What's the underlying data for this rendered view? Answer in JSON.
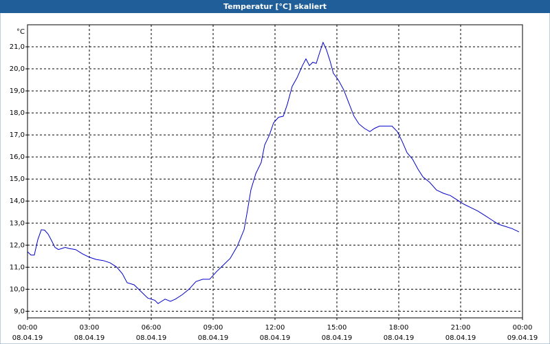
{
  "chart_data": {
    "type": "line",
    "title": "Temperatur [°C] skaliert",
    "y_label": "°C",
    "color": "#0000cc",
    "grid": true,
    "x": [
      0,
      0.17,
      0.33,
      0.5,
      0.67,
      0.83,
      1,
      1.17,
      1.33,
      1.5,
      1.67,
      1.83,
      2,
      2.33,
      2.67,
      3,
      3.33,
      3.67,
      4,
      4.33,
      4.6,
      4.83,
      5.17,
      5.5,
      5.83,
      6.17,
      6.33,
      6.5,
      6.67,
      6.93,
      7.17,
      7.5,
      7.83,
      8.17,
      8.5,
      8.83,
      9.17,
      9.5,
      9.83,
      10.17,
      10.5,
      10.67,
      10.83,
      11.07,
      11.33,
      11.5,
      11.73,
      11.93,
      12.17,
      12.4,
      12.6,
      12.83,
      13.07,
      13.33,
      13.5,
      13.67,
      13.83,
      14,
      14.17,
      14.33,
      14.5,
      14.67,
      14.83,
      15.07,
      15.33,
      15.6,
      15.83,
      16.07,
      16.33,
      16.6,
      16.83,
      17.07,
      17.33,
      17.67,
      17.93,
      18.17,
      18.4,
      18.67,
      18.93,
      19.17,
      19.5,
      19.83,
      20.17,
      20.5,
      20.83,
      21.17,
      21.5,
      21.83,
      22.17,
      22.5,
      22.83,
      23.17,
      23.5,
      23.83
    ],
    "values": [
      11.7,
      11.55,
      11.55,
      12.25,
      12.7,
      12.68,
      12.5,
      12.2,
      11.9,
      11.8,
      11.85,
      11.9,
      11.85,
      11.8,
      11.6,
      11.45,
      11.35,
      11.3,
      11.2,
      11.0,
      10.7,
      10.3,
      10.2,
      9.9,
      9.6,
      9.5,
      9.35,
      9.45,
      9.55,
      9.45,
      9.55,
      9.75,
      10.0,
      10.35,
      10.45,
      10.45,
      10.8,
      11.1,
      11.4,
      11.95,
      12.7,
      13.6,
      14.5,
      15.25,
      15.75,
      16.55,
      17.0,
      17.55,
      17.8,
      17.85,
      18.4,
      19.2,
      19.6,
      20.15,
      20.45,
      20.15,
      20.3,
      20.25,
      20.75,
      21.2,
      20.85,
      20.35,
      19.8,
      19.5,
      19.05,
      18.4,
      17.85,
      17.5,
      17.3,
      17.15,
      17.3,
      17.4,
      17.4,
      17.4,
      17.15,
      16.7,
      16.2,
      15.9,
      15.45,
      15.1,
      14.85,
      14.5,
      14.35,
      14.25,
      14.05,
      13.85,
      13.7,
      13.55,
      13.35,
      13.15,
      12.95,
      12.85,
      12.75,
      12.6
    ],
    "xlim": [
      0,
      24
    ],
    "ylim": [
      8.7,
      22
    ],
    "xticks": [
      {
        "value": 0,
        "label": "00:00",
        "date": "08.04.19"
      },
      {
        "value": 3,
        "label": "03:00",
        "date": "08.04.19"
      },
      {
        "value": 6,
        "label": "06:00",
        "date": "08.04.19"
      },
      {
        "value": 9,
        "label": "09:00",
        "date": "08.04.19"
      },
      {
        "value": 12,
        "label": "12:00",
        "date": "08.04.19"
      },
      {
        "value": 15,
        "label": "15:00",
        "date": "08.04.19"
      },
      {
        "value": 18,
        "label": "18:00",
        "date": "08.04.19"
      },
      {
        "value": 21,
        "label": "21:00",
        "date": "08.04.19"
      },
      {
        "value": 24,
        "label": "00:00",
        "date": "09.04.19"
      }
    ],
    "yticks": [
      {
        "value": 9,
        "label": "9,0"
      },
      {
        "value": 10,
        "label": "10,0"
      },
      {
        "value": 11,
        "label": "11,0"
      },
      {
        "value": 12,
        "label": "12,0"
      },
      {
        "value": 13,
        "label": "13,0"
      },
      {
        "value": 14,
        "label": "14,0"
      },
      {
        "value": 15,
        "label": "15,0"
      },
      {
        "value": 16,
        "label": "16,0"
      },
      {
        "value": 17,
        "label": "17,0"
      },
      {
        "value": 18,
        "label": "18,0"
      },
      {
        "value": 19,
        "label": "19,0"
      },
      {
        "value": 20,
        "label": "20,0"
      },
      {
        "value": 21,
        "label": "21,0"
      }
    ]
  }
}
